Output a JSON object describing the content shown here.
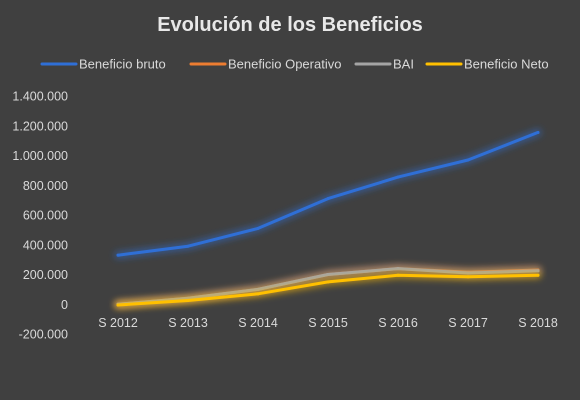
{
  "chart_data": {
    "type": "line",
    "title": "Evolución de los Beneficios",
    "categories": [
      "S 2012",
      "S 2013",
      "S 2014",
      "S 2015",
      "S 2016",
      "S 2017",
      "S 2018"
    ],
    "ylim": [
      -200000,
      1400000
    ],
    "yticks": [
      1400000,
      1200000,
      1000000,
      800000,
      600000,
      400000,
      200000,
      0,
      -200000
    ],
    "ytick_labels": [
      "1.400.000",
      "1.200.000",
      "1.000.000",
      "800.000",
      "600.000",
      "400.000",
      "200.000",
      "0",
      "-200.000"
    ],
    "grid": false,
    "legend": "top",
    "series": [
      {
        "name": "Beneficio bruto",
        "color": "#2f6fd6",
        "values": [
          330000,
          390000,
          510000,
          710000,
          855000,
          970000,
          1155000
        ]
      },
      {
        "name": "Beneficio Operativo",
        "color": "#ed7d31",
        "values": [
          0,
          40000,
          100000,
          200000,
          240000,
          215000,
          230000
        ]
      },
      {
        "name": "BAI",
        "color": "#a5a5a5",
        "values": [
          0,
          40000,
          100000,
          200000,
          240000,
          210000,
          225000
        ]
      },
      {
        "name": "Beneficio Neto",
        "color": "#ffc000",
        "values": [
          -5000,
          25000,
          70000,
          150000,
          195000,
          185000,
          195000
        ]
      }
    ]
  }
}
